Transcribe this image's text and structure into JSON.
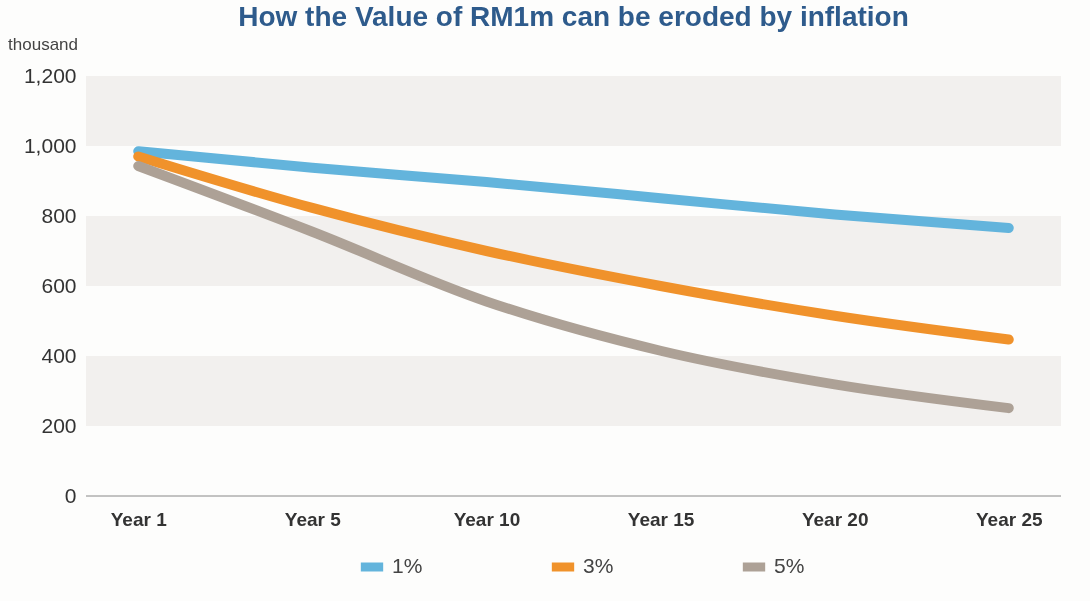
{
  "chart_data": {
    "type": "line",
    "title": "How the Value of RM1m can be eroded by inflation",
    "ylabel": "thousand",
    "categories": [
      "Year 1",
      "Year 5",
      "Year 10",
      "Year 15",
      "Year 20",
      "Year 25"
    ],
    "series": [
      {
        "name": "1%",
        "color": "#63b4dc",
        "values": [
          985,
          938,
          897,
          851,
          804,
          766
        ]
      },
      {
        "name": "3%",
        "color": "#f0922b",
        "values": [
          970,
          823,
          700,
          600,
          515,
          447
        ]
      },
      {
        "name": "5%",
        "color": "#ada196",
        "values": [
          943,
          755,
          556,
          415,
          319,
          251
        ]
      }
    ],
    "ylim": [
      0,
      1200
    ],
    "yticks": [
      0,
      200,
      400,
      600,
      800,
      {
        "value": 1000,
        "label": "1,000"
      },
      {
        "value": 1200,
        "label": "1,200"
      }
    ],
    "bands": [
      {
        "axis": "y",
        "from": 200,
        "to": 400,
        "color": "#f2f0ee"
      },
      {
        "axis": "y",
        "from": 600,
        "to": 800,
        "color": "#f2f0ee"
      },
      {
        "axis": "y",
        "from": 1000,
        "to": 1200,
        "color": "#f2f0ee"
      }
    ],
    "legend": "bottom",
    "marker": "none",
    "line_style": "solid"
  }
}
